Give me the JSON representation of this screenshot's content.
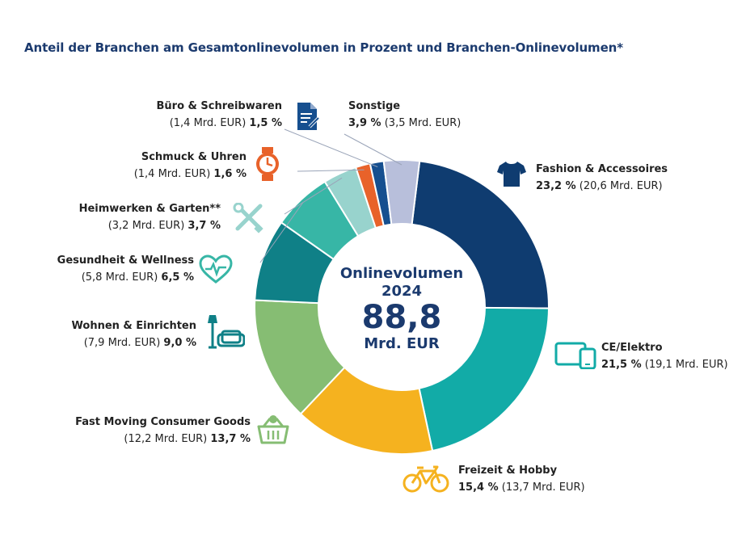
{
  "chart_data": {
    "type": "pie",
    "title": "Anteil der Branchen am Gesamtonlinevolumen in Prozent und Branchen-Onlinevolumen*",
    "center": {
      "line1": "Onlinevolumen",
      "line2": "2024",
      "value": "88,8",
      "unit": "Mrd. EUR"
    },
    "slices": [
      {
        "name": "Fashion & Accessoires",
        "percent": 23.2,
        "percent_label": "23,2 %",
        "volume_label": "(20,6 Mrd. EUR)",
        "color": "#0f3c70",
        "icon": "tshirt-icon"
      },
      {
        "name": "CE/Elektro",
        "percent": 21.5,
        "percent_label": "21,5 %",
        "volume_label": "(19,1 Mrd. EUR)",
        "color": "#12aba7",
        "icon": "devices-icon"
      },
      {
        "name": "Freizeit & Hobby",
        "percent": 15.4,
        "percent_label": "15,4 %",
        "volume_label": "(13,7 Mrd. EUR)",
        "color": "#f5b21f",
        "icon": "bicycle-icon"
      },
      {
        "name": "Fast Moving Consumer Goods",
        "percent": 13.7,
        "percent_label": "13,7 %",
        "volume_label": "(12,2 Mrd. EUR)",
        "color": "#86bd73",
        "icon": "basket-icon"
      },
      {
        "name": "Wohnen & Einrichten",
        "percent": 9.0,
        "percent_label": "9,0 %",
        "volume_label": "(7,9 Mrd. EUR)",
        "color": "#0f8087",
        "icon": "sofa-lamp-icon"
      },
      {
        "name": "Gesundheit & Wellness",
        "percent": 6.5,
        "percent_label": "6,5 %",
        "volume_label": "(5,8 Mrd. EUR)",
        "color": "#37b6a6",
        "icon": "heartbeat-icon"
      },
      {
        "name": "Heimwerken & Garten**",
        "percent": 3.7,
        "percent_label": "3,7 %",
        "volume_label": "(3,2 Mrd. EUR)",
        "color": "#98d3cd",
        "icon": "tools-icon"
      },
      {
        "name": "Schmuck & Uhren",
        "percent": 1.6,
        "percent_label": "1,6 %",
        "volume_label": "(1,4 Mrd. EUR)",
        "color": "#e8622a",
        "icon": "watch-icon"
      },
      {
        "name": "Büro & Schreibwaren",
        "percent": 1.5,
        "percent_label": "1,5 %",
        "volume_label": "(1,4 Mrd. EUR)",
        "color": "#164f8f",
        "icon": "document-pen-icon"
      },
      {
        "name": "Sonstige",
        "percent": 3.9,
        "percent_label": "3,9 %",
        "volume_label": "(3,5 Mrd. EUR)",
        "color": "#b8bfdb",
        "icon": ""
      }
    ]
  }
}
